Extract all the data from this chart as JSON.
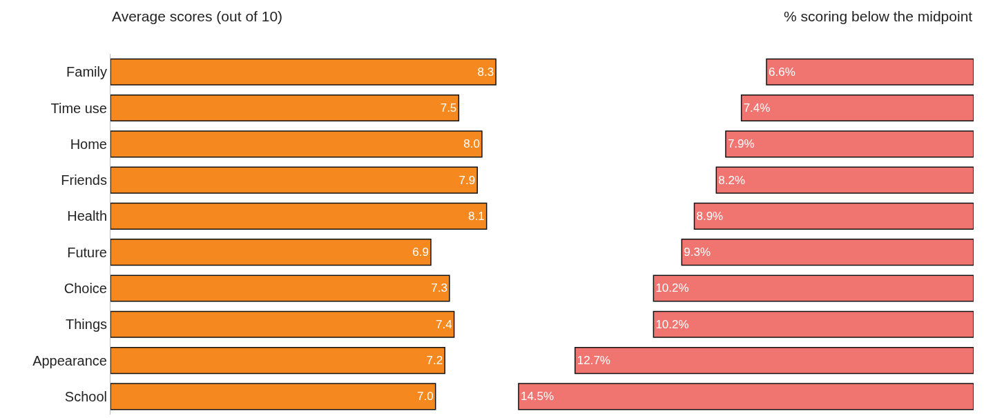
{
  "chart_data": [
    {
      "type": "bar",
      "orientation": "horizontal",
      "title": "Average scores (out of 10)",
      "categories": [
        "Family",
        "Time use",
        "Home",
        "Friends",
        "Health",
        "Future",
        "Choice",
        "Things",
        "Appearance",
        "School"
      ],
      "values": [
        8.3,
        7.5,
        8.0,
        7.9,
        8.1,
        6.9,
        7.3,
        7.4,
        7.2,
        7.0
      ],
      "value_labels": [
        "8.3",
        "7.5",
        "8.0",
        "7.9",
        "8.1",
        "6.9",
        "7.3",
        "7.4",
        "7.2",
        "7.0"
      ],
      "color": "#f5891f",
      "tick_labels": "y"
    },
    {
      "type": "bar",
      "orientation": "horizontal",
      "title": "% scoring below the midpoint",
      "categories": [
        "Family",
        "Time use",
        "Home",
        "Friends",
        "Health",
        "Future",
        "Choice",
        "Things",
        "Appearance",
        "School"
      ],
      "values": [
        6.6,
        7.4,
        7.9,
        8.2,
        8.9,
        9.3,
        10.2,
        10.2,
        12.7,
        14.5
      ],
      "value_labels": [
        "6.6%",
        "7.4%",
        "7.9%",
        "8.2%",
        "8.9%",
        "9.3%",
        "10.2%",
        "10.2%",
        "12.7%",
        "14.5%"
      ],
      "color": "#f07470",
      "tick_labels": false
    }
  ]
}
